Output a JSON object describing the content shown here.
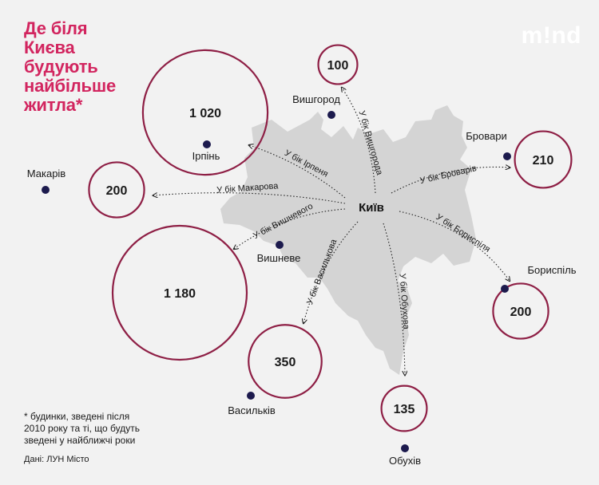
{
  "header": {
    "title_lines": [
      "Де біля",
      "Києва",
      "будують",
      "найбільше",
      "житла*"
    ],
    "logo": "m!nd"
  },
  "footnote_lines": [
    "* будинки, зведені після",
    "2010 року та ті, що будуть",
    "зведені у найближчі роки"
  ],
  "source": "Дані: ЛУН Місто",
  "colors": {
    "accent": "#d2255f",
    "circle_stroke": "#8e1f45",
    "city_fill": "#d4d4d4",
    "background": "#f2f2f2"
  },
  "chart_data": {
    "type": "bubble-map",
    "title": "Де біля Києва будують найбільше житла*",
    "center": "Київ",
    "bubbles": [
      {
        "town": "Вишгород",
        "value": 100
      },
      {
        "town": "Ірпінь",
        "value": 1020
      },
      {
        "town": "Макарів",
        "value": 200
      },
      {
        "town": "Бровари",
        "value": 210
      },
      {
        "town": "Вишневе",
        "value": 1180
      },
      {
        "town": "Бориспіль",
        "value": 200
      },
      {
        "town": "Васильків",
        "value": 350
      },
      {
        "town": "Обухів",
        "value": 135
      }
    ],
    "directions": [
      {
        "label": "У бік Вишгорода",
        "target": "Вишгород"
      },
      {
        "label": "У бік Ірпеня",
        "target": "Ірпінь"
      },
      {
        "label": "У бік Макарова",
        "target": "Макарів"
      },
      {
        "label": "У бік Броварів",
        "target": "Бровари"
      },
      {
        "label": "У бік Вишневого",
        "target": "Вишневе"
      },
      {
        "label": "У бік Бориспіля",
        "target": "Бориспіль"
      },
      {
        "label": "У бік Василькова",
        "target": "Васильків"
      },
      {
        "label": "У бік Обухова",
        "target": "Обухів"
      }
    ]
  }
}
